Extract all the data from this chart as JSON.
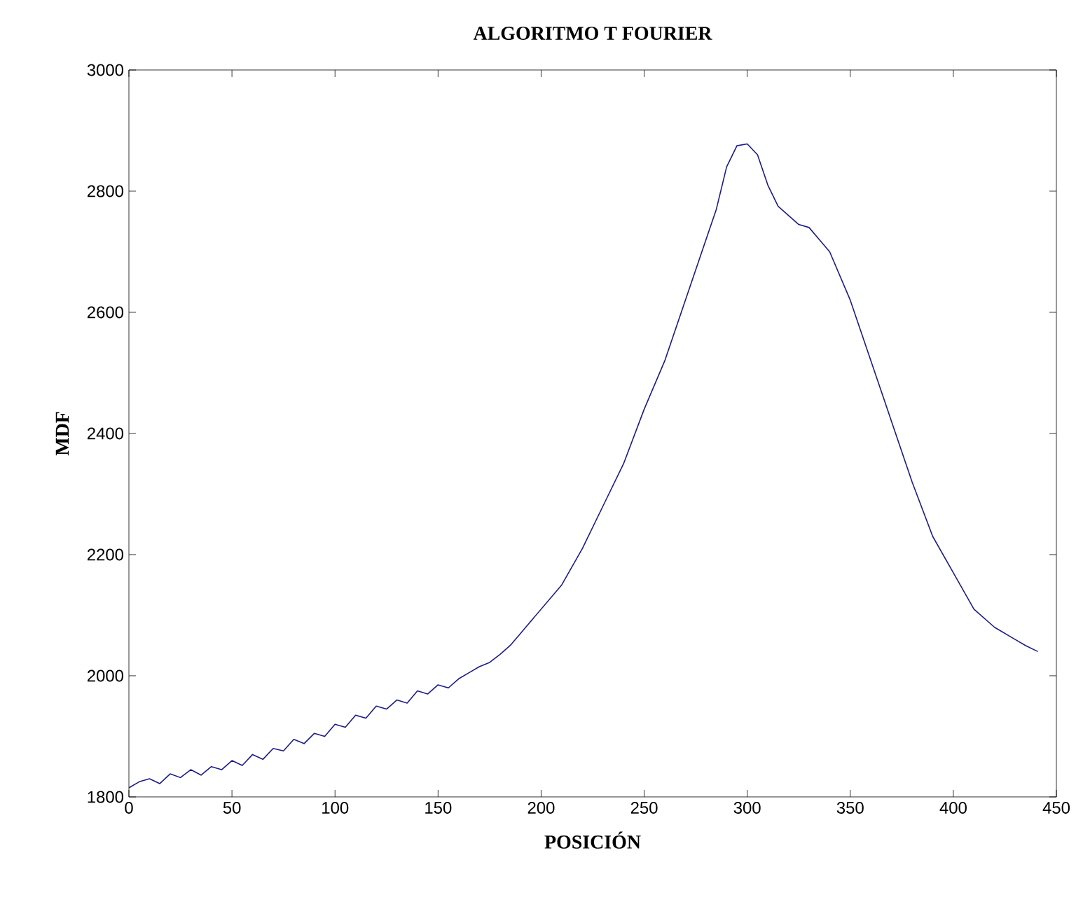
{
  "chart_data": {
    "type": "line",
    "title": "ALGORITMO T FOURIER",
    "xlabel": "POSICIÓN",
    "ylabel": "MDF",
    "xlim": [
      0,
      450
    ],
    "ylim": [
      1800,
      3000
    ],
    "xticks": [
      0,
      50,
      100,
      150,
      200,
      250,
      300,
      350,
      400,
      450
    ],
    "yticks": [
      1800,
      2000,
      2200,
      2400,
      2600,
      2800,
      3000
    ],
    "marker": "none",
    "line_style": "solid",
    "series": [
      {
        "color": "#1c1c8a",
        "x": [
          0,
          5,
          10,
          15,
          20,
          25,
          30,
          35,
          40,
          45,
          50,
          55,
          60,
          65,
          70,
          75,
          80,
          85,
          90,
          95,
          100,
          105,
          110,
          115,
          120,
          125,
          130,
          135,
          140,
          145,
          150,
          155,
          160,
          165,
          170,
          175,
          180,
          185,
          190,
          200,
          210,
          220,
          230,
          240,
          250,
          260,
          270,
          280,
          285,
          290,
          295,
          300,
          305,
          310,
          315,
          320,
          325,
          330,
          335,
          340,
          350,
          360,
          370,
          380,
          390,
          400,
          410,
          420,
          430,
          435,
          441
        ],
        "values": [
          1815,
          1825,
          1830,
          1822,
          1838,
          1832,
          1845,
          1836,
          1850,
          1845,
          1860,
          1852,
          1870,
          1862,
          1880,
          1876,
          1895,
          1888,
          1905,
          1900,
          1920,
          1915,
          1935,
          1930,
          1950,
          1945,
          1960,
          1955,
          1975,
          1970,
          1985,
          1980,
          1995,
          2005,
          2015,
          2022,
          2035,
          2050,
          2070,
          2110,
          2150,
          2210,
          2280,
          2350,
          2440,
          2520,
          2620,
          2720,
          2770,
          2840,
          2875,
          2878,
          2860,
          2810,
          2775,
          2760,
          2745,
          2740,
          2720,
          2700,
          2620,
          2520,
          2420,
          2320,
          2230,
          2170,
          2110,
          2080,
          2060,
          2050,
          2040
        ]
      }
    ]
  }
}
